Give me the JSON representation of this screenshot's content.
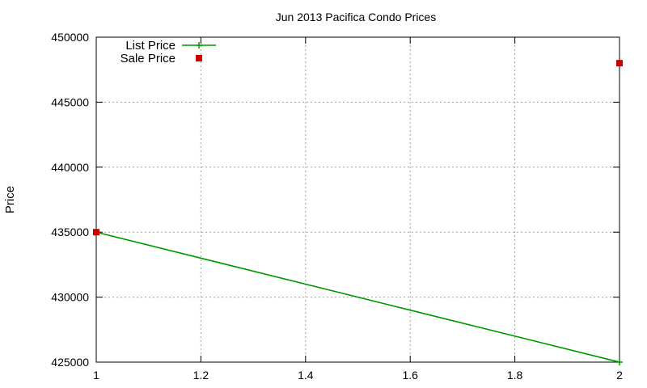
{
  "chart_data": {
    "type": "line",
    "title": "Jun 2013 Pacifica Condo Prices",
    "xlabel": "",
    "ylabel": "Price",
    "xlim": [
      1,
      2
    ],
    "ylim": [
      425000,
      450000
    ],
    "x_ticks": [
      "1",
      "1.2",
      "1.4",
      "1.6",
      "1.8",
      "2"
    ],
    "y_ticks": [
      "425000",
      "430000",
      "435000",
      "440000",
      "445000",
      "450000"
    ],
    "grid": true,
    "legend_position": "top-left",
    "series": [
      {
        "name": "List Price",
        "style": "line-with-plus-markers",
        "color": "#009900",
        "points": [
          [
            1,
            435000
          ],
          [
            2,
            425000
          ]
        ]
      },
      {
        "name": "Sale Price",
        "style": "square-markers",
        "color": "#cc0000",
        "points": [
          [
            1,
            435000
          ],
          [
            2,
            448000
          ]
        ]
      }
    ]
  }
}
